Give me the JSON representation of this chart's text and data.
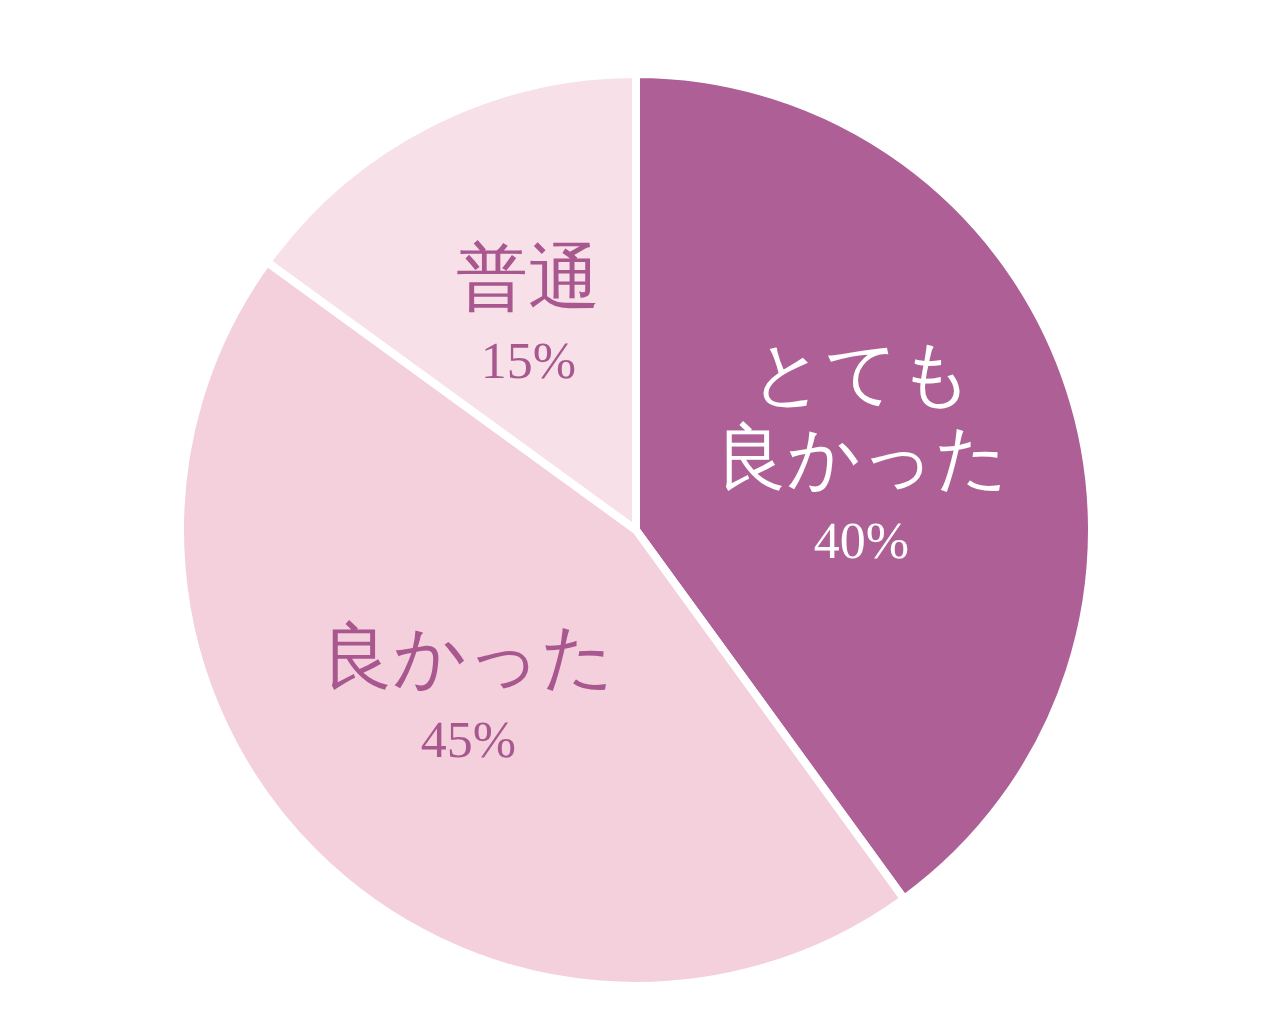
{
  "chart_data": {
    "type": "pie",
    "categories": [
      "とても良かった",
      "良かった",
      "普通"
    ],
    "values": [
      40,
      45,
      15
    ],
    "colors": [
      "#ad5f96",
      "#f3d0dc",
      "#f7e0e8"
    ],
    "value_labels": [
      "40%",
      "45%",
      "15%"
    ]
  }
}
